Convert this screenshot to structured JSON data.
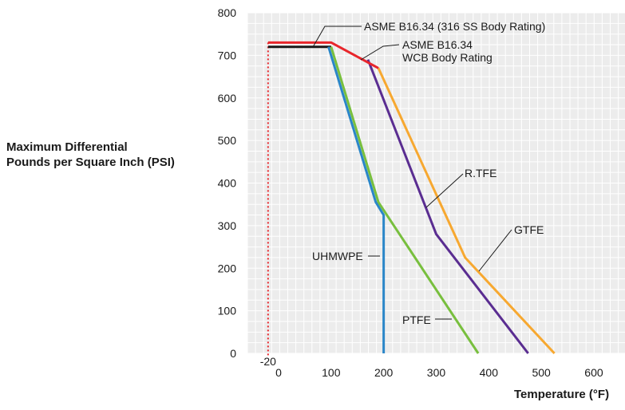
{
  "chart_data": {
    "type": "line",
    "ylabel_lines": [
      "Maximum Differential",
      "Pounds per Square Inch (PSI)"
    ],
    "xlabel": "Temperature (°F)",
    "xlim": [
      -20,
      650
    ],
    "ylim": [
      0,
      800
    ],
    "x_ticks": [
      0,
      100,
      200,
      300,
      400,
      500,
      600
    ],
    "x_extra_tick": "-20",
    "y_ticks": [
      0,
      100,
      200,
      300,
      400,
      500,
      600,
      700,
      800
    ],
    "grid": true,
    "series": [
      {
        "name": "ASME B16.34 (316 SS Body Rating)",
        "color": "#e8262b",
        "x": [
          -20,
          100,
          160,
          190
        ],
        "y": [
          730,
          730,
          690,
          670
        ]
      },
      {
        "name": "ASME B16.34 WCB Body Rating",
        "color": "#1a1a1a",
        "x": [
          -20,
          100
        ],
        "y": [
          720,
          720
        ]
      },
      {
        "name": "R.TFE",
        "color": "#5a2d91",
        "x": [
          170,
          300,
          475
        ],
        "y": [
          690,
          280,
          0
        ]
      },
      {
        "name": "GTFE",
        "color": "#f7a830",
        "x": [
          190,
          355,
          525
        ],
        "y": [
          670,
          225,
          0
        ]
      },
      {
        "name": "UHMWPE",
        "color": "#2a86c8",
        "x": [
          95,
          185,
          200,
          200
        ],
        "y": [
          720,
          355,
          325,
          0
        ]
      },
      {
        "name": "PTFE",
        "color": "#78bf3e",
        "x": [
          100,
          190,
          380
        ],
        "y": [
          720,
          355,
          0
        ]
      }
    ],
    "annotations": [
      {
        "text": "ASME B16.34 (316 SS Body Rating)"
      },
      {
        "text": "ASME  B16.34"
      },
      {
        "text": "WCB Body Rating"
      },
      {
        "text": "R.TFE"
      },
      {
        "text": "GTFE"
      },
      {
        "text": "UHMWPE"
      },
      {
        "text": "PTFE"
      }
    ]
  }
}
